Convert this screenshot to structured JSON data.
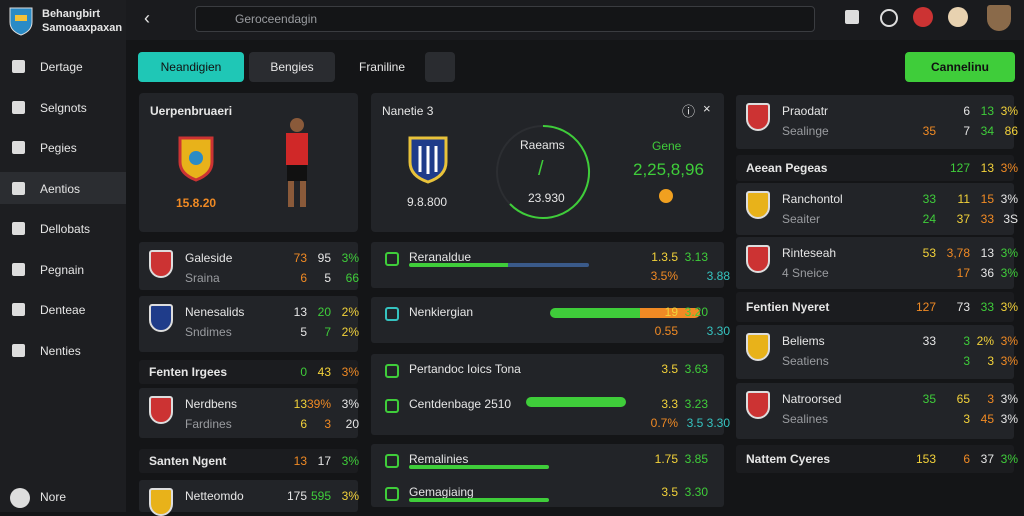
{
  "sidebar": {
    "brand": [
      "Behangbirt",
      "Samoaaxpaxan"
    ],
    "nav": [
      "Dertage",
      "Selgnots",
      "Pegies",
      "Aentios",
      "Dellobats",
      "Pegnain",
      "Denteae",
      "Nenties"
    ],
    "footer": "Nore"
  },
  "topbar": {
    "search": "Geroceendagin"
  },
  "tabs": [
    "Neandigien",
    "Bengies",
    "Franiline"
  ],
  "action": "Cannelinu",
  "left": {
    "title": "Uerpenbruaeri",
    "value": "15.8.20",
    "items": [
      {
        "name": "Galeside",
        "sub": "Sraina",
        "vals": [
          "73",
          "95",
          "3%"
        ],
        "subvals": [
          "6",
          "5",
          "66"
        ]
      },
      {
        "name": "Nenesalids",
        "sub": "Sndimes",
        "vals": [
          "13",
          "20",
          "2%"
        ],
        "subvals": [
          "5",
          "7",
          "2%"
        ]
      },
      {
        "section": "Fenten Irgees",
        "vals": [
          "0",
          "43",
          "3%"
        ]
      },
      {
        "name": "Nerdbens",
        "sub": "Fardines",
        "vals": [
          "13",
          "39%",
          "3%"
        ],
        "subvals": [
          "6",
          "3",
          "20"
        ]
      },
      {
        "section": "Santen Ngent",
        "vals": [
          "13",
          "17",
          "3%"
        ]
      },
      {
        "name": "Netteomdo",
        "vals": [
          "175",
          "595",
          "3%"
        ]
      }
    ]
  },
  "middle": {
    "title": "Nanetie 3",
    "team_value": "9.8.800",
    "ring_label": "Raeams",
    "ring_mark": "/",
    "ring_value": "23.930",
    "gain_label": "Gene",
    "gain_value": "2,25,8,96",
    "rows": [
      {
        "name": "Reranaldue",
        "vals": [
          "1.3.5",
          "3.13"
        ],
        "subvals": [
          "3.5%",
          "3.88"
        ]
      },
      {
        "name": "Nenkiergian",
        "vals": [
          "19",
          "3.20"
        ],
        "subvals": [
          "0.55",
          "3.30"
        ]
      },
      {
        "name": "Pertandoc Ioics Tona",
        "vals": [
          "3.5",
          "3.63"
        ]
      },
      {
        "name": "Centdenbage 2510",
        "vals": [
          "3.3",
          "3.23"
        ],
        "subvals": [
          "0.7%",
          "3.5 3.30"
        ]
      },
      {
        "name": "Remalinies",
        "vals": [
          "1.75",
          "3.85"
        ]
      },
      {
        "name": "Gemagiaing",
        "vals": [
          "3.5",
          "3.30"
        ]
      }
    ]
  },
  "right": {
    "items": [
      {
        "name": "Praodatr",
        "sub": "Sealinge",
        "vals": [
          "6",
          "13",
          "3%"
        ],
        "subvals": [
          "35",
          "7",
          "34",
          "86"
        ]
      },
      {
        "section": "Aeean Pegeas",
        "vals": [
          "127",
          "13",
          "3%"
        ]
      },
      {
        "name": "Ranchontol",
        "sub": "Seaiter",
        "vals": [
          "33",
          "11",
          "15",
          "3%"
        ],
        "subvals": [
          "24",
          "37",
          "33",
          "3S"
        ]
      },
      {
        "name": "Rinteseah",
        "sub": "4 Sneice",
        "vals": [
          "53",
          "3,78",
          "13",
          "3%"
        ],
        "subvals": [
          "17",
          "36",
          "3%"
        ]
      },
      {
        "section": "Fentien Nyeret",
        "vals": [
          "127",
          "73",
          "33",
          "3%"
        ]
      },
      {
        "name": "Beliems",
        "sub": "Seatiens",
        "vals": [
          "33",
          "3",
          "2%",
          "3%"
        ],
        "subvals": [
          "3",
          "3",
          "3%"
        ]
      },
      {
        "name": "Natroorsed",
        "sub": "Sealines",
        "vals": [
          "35",
          "65",
          "3",
          "3%"
        ],
        "subvals": [
          "3",
          "45",
          "3%"
        ]
      },
      {
        "section": "Nattem Cyeres",
        "vals": [
          "153",
          "6",
          "37",
          "3%"
        ]
      }
    ]
  }
}
